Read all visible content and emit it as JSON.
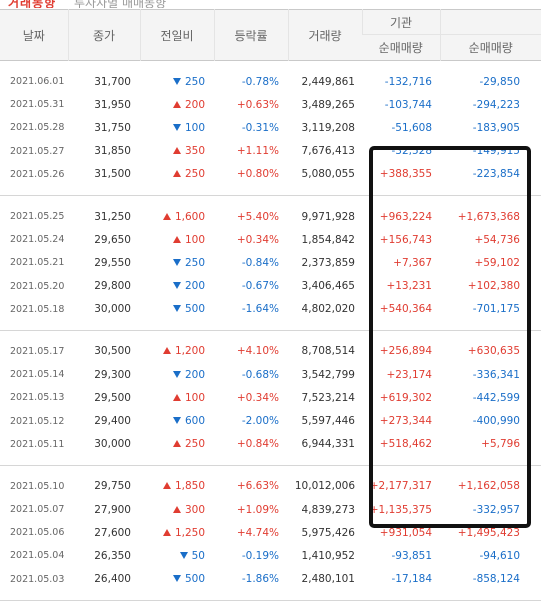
{
  "top_strip": {
    "red_text": "거래동향",
    "gray_text": "투자자별 매매동향"
  },
  "headers": {
    "date": "날짜",
    "close": "종가",
    "change": "전일비",
    "rate": "등락률",
    "volume": "거래량",
    "institution": "기관",
    "institution_net": "순매매량",
    "foreign_net": "순매매량"
  },
  "rows": [
    {
      "date": "2021.06.01",
      "close": "31,700",
      "dir": "down",
      "change": "250",
      "rate": "-0.78%",
      "volume": "2,449,861",
      "inst": "-132,716",
      "fore": "-29,850"
    },
    {
      "date": "2021.05.31",
      "close": "31,950",
      "dir": "up",
      "change": "200",
      "rate": "+0.63%",
      "volume": "3,489,265",
      "inst": "-103,744",
      "fore": "-294,223"
    },
    {
      "date": "2021.05.28",
      "close": "31,750",
      "dir": "down",
      "change": "100",
      "rate": "-0.31%",
      "volume": "3,119,208",
      "inst": "-51,608",
      "fore": "-183,905"
    },
    {
      "date": "2021.05.27",
      "close": "31,850",
      "dir": "up",
      "change": "350",
      "rate": "+1.11%",
      "volume": "7,676,413",
      "inst": "-32,528",
      "fore": "-149,915"
    },
    {
      "date": "2021.05.26",
      "close": "31,500",
      "dir": "up",
      "change": "250",
      "rate": "+0.80%",
      "volume": "5,080,055",
      "inst": "+388,355",
      "fore": "-223,854"
    },
    {
      "date": "2021.05.25",
      "close": "31,250",
      "dir": "up",
      "change": "1,600",
      "rate": "+5.40%",
      "volume": "9,971,928",
      "inst": "+963,224",
      "fore": "+1,673,368"
    },
    {
      "date": "2021.05.24",
      "close": "29,650",
      "dir": "up",
      "change": "100",
      "rate": "+0.34%",
      "volume": "1,854,842",
      "inst": "+156,743",
      "fore": "+54,736"
    },
    {
      "date": "2021.05.21",
      "close": "29,550",
      "dir": "down",
      "change": "250",
      "rate": "-0.84%",
      "volume": "2,373,859",
      "inst": "+7,367",
      "fore": "+59,102"
    },
    {
      "date": "2021.05.20",
      "close": "29,800",
      "dir": "down",
      "change": "200",
      "rate": "-0.67%",
      "volume": "3,406,465",
      "inst": "+13,231",
      "fore": "+102,380"
    },
    {
      "date": "2021.05.18",
      "close": "30,000",
      "dir": "down",
      "change": "500",
      "rate": "-1.64%",
      "volume": "4,802,020",
      "inst": "+540,364",
      "fore": "-701,175"
    },
    {
      "date": "2021.05.17",
      "close": "30,500",
      "dir": "up",
      "change": "1,200",
      "rate": "+4.10%",
      "volume": "8,708,514",
      "inst": "+256,894",
      "fore": "+630,635"
    },
    {
      "date": "2021.05.14",
      "close": "29,300",
      "dir": "down",
      "change": "200",
      "rate": "-0.68%",
      "volume": "3,542,799",
      "inst": "+23,174",
      "fore": "-336,341"
    },
    {
      "date": "2021.05.13",
      "close": "29,500",
      "dir": "up",
      "change": "100",
      "rate": "+0.34%",
      "volume": "7,523,214",
      "inst": "+619,302",
      "fore": "-442,599"
    },
    {
      "date": "2021.05.12",
      "close": "29,400",
      "dir": "down",
      "change": "600",
      "rate": "-2.00%",
      "volume": "5,597,446",
      "inst": "+273,344",
      "fore": "-400,990"
    },
    {
      "date": "2021.05.11",
      "close": "30,000",
      "dir": "up",
      "change": "250",
      "rate": "+0.84%",
      "volume": "6,944,331",
      "inst": "+518,462",
      "fore": "+5,796"
    },
    {
      "date": "2021.05.10",
      "close": "29,750",
      "dir": "up",
      "change": "1,850",
      "rate": "+6.63%",
      "volume": "10,012,006",
      "inst": "+2,177,317",
      "fore": "+1,162,058"
    },
    {
      "date": "2021.05.07",
      "close": "27,900",
      "dir": "up",
      "change": "300",
      "rate": "+1.09%",
      "volume": "4,839,273",
      "inst": "+1,135,375",
      "fore": "-332,957"
    },
    {
      "date": "2021.05.06",
      "close": "27,600",
      "dir": "up",
      "change": "1,250",
      "rate": "+4.74%",
      "volume": "5,975,426",
      "inst": "+931,054",
      "fore": "+1,495,423"
    },
    {
      "date": "2021.05.04",
      "close": "26,350",
      "dir": "down",
      "change": "50",
      "rate": "-0.19%",
      "volume": "1,410,952",
      "inst": "-93,851",
      "fore": "-94,610"
    },
    {
      "date": "2021.05.03",
      "close": "26,400",
      "dir": "down",
      "change": "500",
      "rate": "-1.86%",
      "volume": "2,480,101",
      "inst": "-17,184",
      "fore": "-858,124"
    }
  ],
  "colors": {
    "up": "#e03c31",
    "down": "#1a6ec8",
    "highlight_border": "#111111"
  }
}
